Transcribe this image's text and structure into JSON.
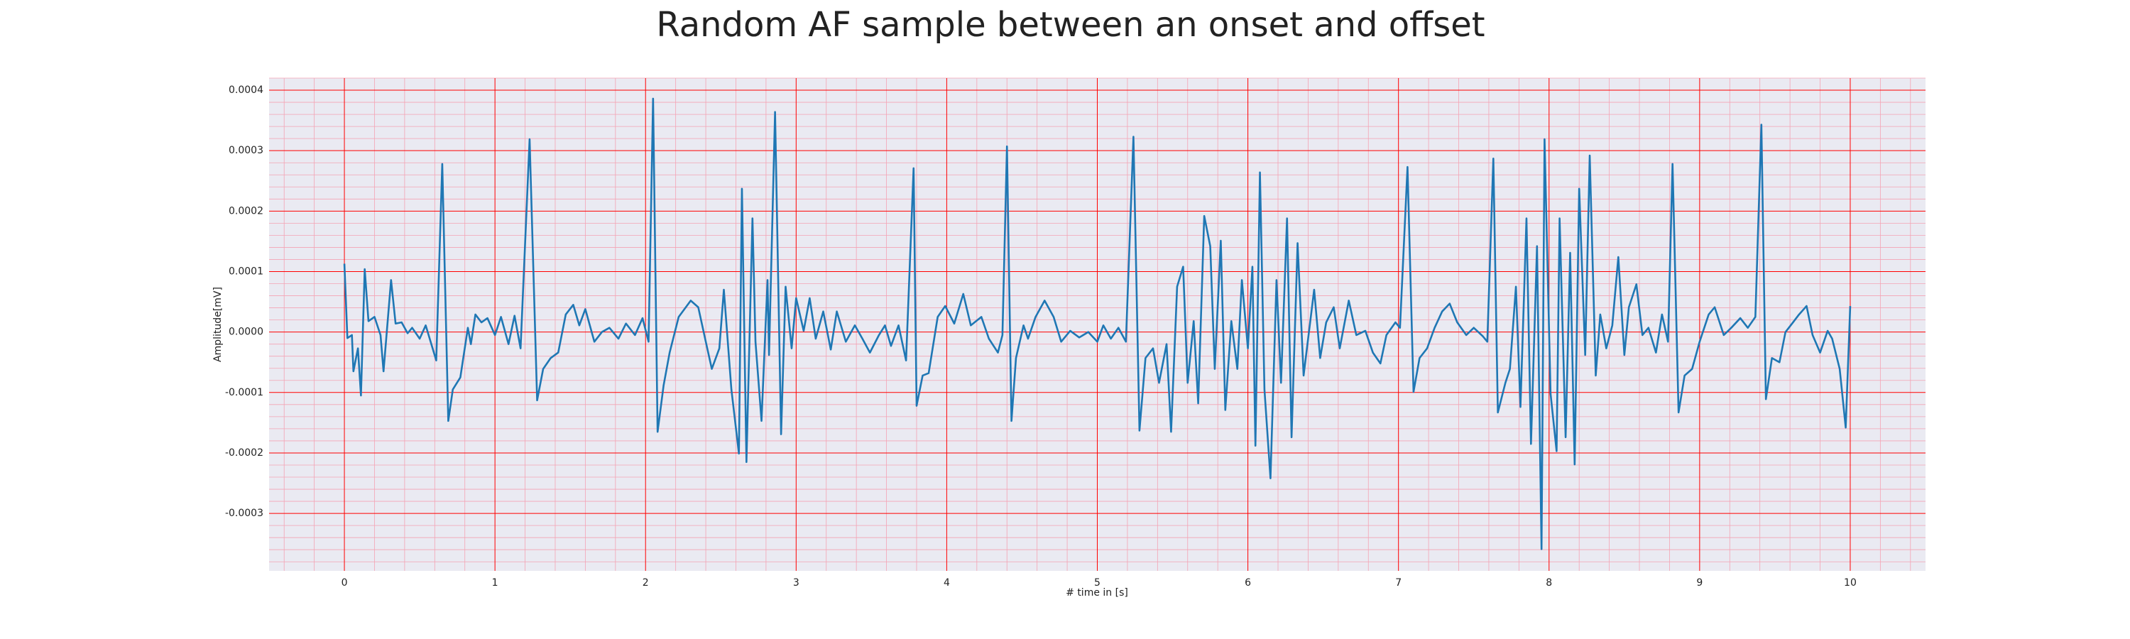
{
  "chart_data": {
    "type": "line",
    "title": "Random AF sample between an onset and offset",
    "xlabel": "# time in [s]",
    "ylabel": "Amplitude[mV]",
    "color": "#1f77b4",
    "background": "#eaeaf2",
    "grid": true,
    "grid_color": "#ff0000",
    "minor_grid": true,
    "minor_grid_color": "#f4a3b4",
    "minor_grid_divisions": 5,
    "xlim": [
      -0.5,
      10.5
    ],
    "ylim": [
      -0.000395,
      0.00042
    ],
    "xticks": [
      0,
      1,
      2,
      3,
      4,
      5,
      6,
      7,
      8,
      9,
      10
    ],
    "yticks": [
      -0.0003,
      -0.0002,
      -0.0001,
      {
        "value": 0,
        "label": "0.0000"
      },
      0.0001,
      0.0002,
      0.0003,
      0.0004
    ],
    "x": [
      0,
      0.02,
      0.05,
      0.06,
      0.09,
      0.11,
      0.135,
      0.16,
      0.2,
      0.24,
      0.26,
      0.31,
      0.34,
      0.38,
      0.42,
      0.45,
      0.5,
      0.54,
      0.61,
      0.65,
      0.69,
      0.72,
      0.77,
      0.82,
      0.84,
      0.87,
      0.91,
      0.95,
      1.0,
      1.04,
      1.09,
      1.13,
      1.17,
      1.23,
      1.28,
      1.32,
      1.37,
      1.42,
      1.47,
      1.52,
      1.56,
      1.6,
      1.66,
      1.71,
      1.76,
      1.82,
      1.87,
      1.93,
      1.98,
      2.02,
      2.05,
      2.08,
      2.12,
      2.16,
      2.22,
      2.3,
      2.35,
      2.4,
      2.44,
      2.49,
      2.52,
      2.57,
      2.62,
      2.64,
      2.67,
      2.71,
      2.73,
      2.77,
      2.81,
      2.82,
      2.86,
      2.9,
      2.93,
      2.97,
      3.0,
      3.05,
      3.09,
      3.13,
      3.18,
      3.23,
      3.27,
      3.33,
      3.39,
      3.44,
      3.49,
      3.55,
      3.59,
      3.63,
      3.68,
      3.73,
      3.78,
      3.8,
      3.84,
      3.88,
      3.94,
      3.99,
      4.05,
      4.11,
      4.16,
      4.23,
      4.28,
      4.34,
      4.37,
      4.4,
      4.43,
      4.46,
      4.51,
      4.54,
      4.59,
      4.65,
      4.71,
      4.76,
      4.82,
      4.88,
      4.94,
      5.0,
      5.04,
      5.09,
      5.14,
      5.19,
      5.24,
      5.28,
      5.32,
      5.37,
      5.41,
      5.46,
      5.49,
      5.53,
      5.57,
      5.6,
      5.64,
      5.67,
      5.71,
      5.75,
      5.78,
      5.82,
      5.85,
      5.89,
      5.93,
      5.96,
      6.0,
      6.03,
      6.05,
      6.08,
      6.11,
      6.15,
      6.19,
      6.22,
      6.26,
      6.29,
      6.33,
      6.37,
      6.4,
      6.44,
      6.48,
      6.52,
      6.57,
      6.61,
      6.67,
      6.72,
      6.78,
      6.83,
      6.88,
      6.92,
      6.98,
      7.01,
      7.06,
      7.1,
      7.14,
      7.19,
      7.24,
      7.29,
      7.34,
      7.39,
      7.45,
      7.5,
      7.56,
      7.59,
      7.63,
      7.66,
      7.71,
      7.74,
      7.78,
      7.81,
      7.85,
      7.88,
      7.92,
      7.95,
      7.97,
      8.01,
      8.05,
      8.07,
      8.11,
      8.14,
      8.17,
      8.2,
      8.24,
      8.27,
      8.31,
      8.34,
      8.38,
      8.42,
      8.46,
      8.5,
      8.53,
      8.58,
      8.62,
      8.66,
      8.71,
      8.75,
      8.79,
      8.82,
      8.86,
      8.9,
      8.95,
      9.0,
      9.06,
      9.1,
      9.16,
      9.21,
      9.27,
      9.32,
      9.37,
      9.41,
      9.44,
      9.48,
      9.53,
      9.57,
      9.62,
      9.66,
      9.71,
      9.75,
      9.8,
      9.85,
      9.88,
      9.93,
      9.97,
      10.0
    ],
    "values": [
      0.000113,
      -1e-05,
      -5e-06,
      -6.5e-05,
      -2.7e-05,
      -0.000105,
      0.000104,
      1.8e-05,
      2.5e-05,
      -5e-06,
      -6.5e-05,
      8.6e-05,
      1.4e-05,
      1.6e-05,
      -2e-06,
      7e-06,
      -1.1e-05,
      1.1e-05,
      -4.7e-05,
      0.000278,
      -0.000147,
      -9.5e-05,
      -7.5e-05,
      7e-06,
      -2e-05,
      2.9e-05,
      1.6e-05,
      2.3e-05,
      -5e-06,
      2.5e-05,
      -2e-05,
      2.7e-05,
      -2.7e-05,
      0.000319,
      -0.000113,
      -6.1e-05,
      -4.3e-05,
      -3.4e-05,
      2.9e-05,
      4.5e-05,
      1.1e-05,
      3.8e-05,
      -1.6e-05,
      0.0,
      7e-06,
      -1.1e-05,
      1.4e-05,
      -5e-06,
      2.3e-05,
      -1.6e-05,
      0.000386,
      -0.000165,
      -8.8e-05,
      -3.4e-05,
      2.5e-05,
      5.2e-05,
      4.1e-05,
      -1.6e-05,
      -6.1e-05,
      -2.7e-05,
      7e-05,
      -9.5e-05,
      -0.000201,
      0.000237,
      -0.000215,
      0.000188,
      -1.6e-05,
      -0.000147,
      8.6e-05,
      -3.8e-05,
      0.000364,
      -0.000169,
      7.5e-05,
      -2.7e-05,
      5.6e-05,
      2e-06,
      5.6e-05,
      -1.1e-05,
      3.4e-05,
      -2.9e-05,
      3.4e-05,
      -1.6e-05,
      1.1e-05,
      -1.1e-05,
      -3.4e-05,
      -5e-06,
      1.1e-05,
      -2.3e-05,
      1.1e-05,
      -4.7e-05,
      0.000271,
      -0.000122,
      -7.2e-05,
      -6.8e-05,
      2.5e-05,
      4.3e-05,
      1.4e-05,
      6.3e-05,
      1.1e-05,
      2.5e-05,
      -1.1e-05,
      -3.4e-05,
      -5e-06,
      0.000307,
      -0.000147,
      -4.3e-05,
      1.1e-05,
      -1.1e-05,
      2.5e-05,
      5.2e-05,
      2.5e-05,
      -1.6e-05,
      2e-06,
      -9e-06,
      0.0,
      -1.6e-05,
      1.1e-05,
      -1.1e-05,
      7e-06,
      -1.6e-05,
      0.000323,
      -0.000163,
      -4.3e-05,
      -2.7e-05,
      -8.4e-05,
      -2e-05,
      -0.000165,
      7.5e-05,
      0.000108,
      -8.4e-05,
      1.8e-05,
      -0.000118,
      0.000192,
      0.000142,
      -6.1e-05,
      0.000151,
      -0.000129,
      1.8e-05,
      -6.1e-05,
      8.6e-05,
      -2.7e-05,
      0.000108,
      -0.000188,
      0.000264,
      -9.5e-05,
      -0.000242,
      8.6e-05,
      -8.4e-05,
      0.000188,
      -0.000174,
      0.000147,
      -7.2e-05,
      -1.1e-05,
      7e-05,
      -4.3e-05,
      1.6e-05,
      4.1e-05,
      -2.7e-05,
      5.2e-05,
      -5e-06,
      2e-06,
      -3.4e-05,
      -5.2e-05,
      -5e-06,
      1.6e-05,
      7e-06,
      0.000273,
      -9.9e-05,
      -4.3e-05,
      -2.7e-05,
      7e-06,
      3.4e-05,
      4.7e-05,
      1.6e-05,
      -5e-06,
      7e-06,
      -7e-06,
      -1.6e-05,
      0.000287,
      -0.000133,
      -8.4e-05,
      -6.1e-05,
      7.5e-05,
      -0.000124,
      0.000188,
      -0.000185,
      0.000142,
      -0.000359,
      0.000319,
      -0.000102,
      -0.000197,
      0.000188,
      -0.000174,
      0.000131,
      -0.000219,
      0.000237,
      -3.8e-05,
      0.000292,
      -7.2e-05,
      2.9e-05,
      -2.7e-05,
      1.1e-05,
      0.000124,
      -3.8e-05,
      4.1e-05,
      7.9e-05,
      -5e-06,
      7e-06,
      -3.4e-05,
      2.9e-05,
      -1.6e-05,
      0.000278,
      -0.000133,
      -7.2e-05,
      -6.1e-05,
      -1.6e-05,
      2.9e-05,
      4.1e-05,
      -5e-06,
      7e-06,
      2.3e-05,
      7e-06,
      2.5e-05,
      0.000343,
      -0.000111,
      -4.3e-05,
      -5e-05,
      0.0,
      1.6e-05,
      2.9e-05,
      4.3e-05,
      -5e-06,
      -3.4e-05,
      2e-06,
      -1.1e-05,
      -6.1e-05,
      -0.000158,
      4.3e-05
    ]
  }
}
